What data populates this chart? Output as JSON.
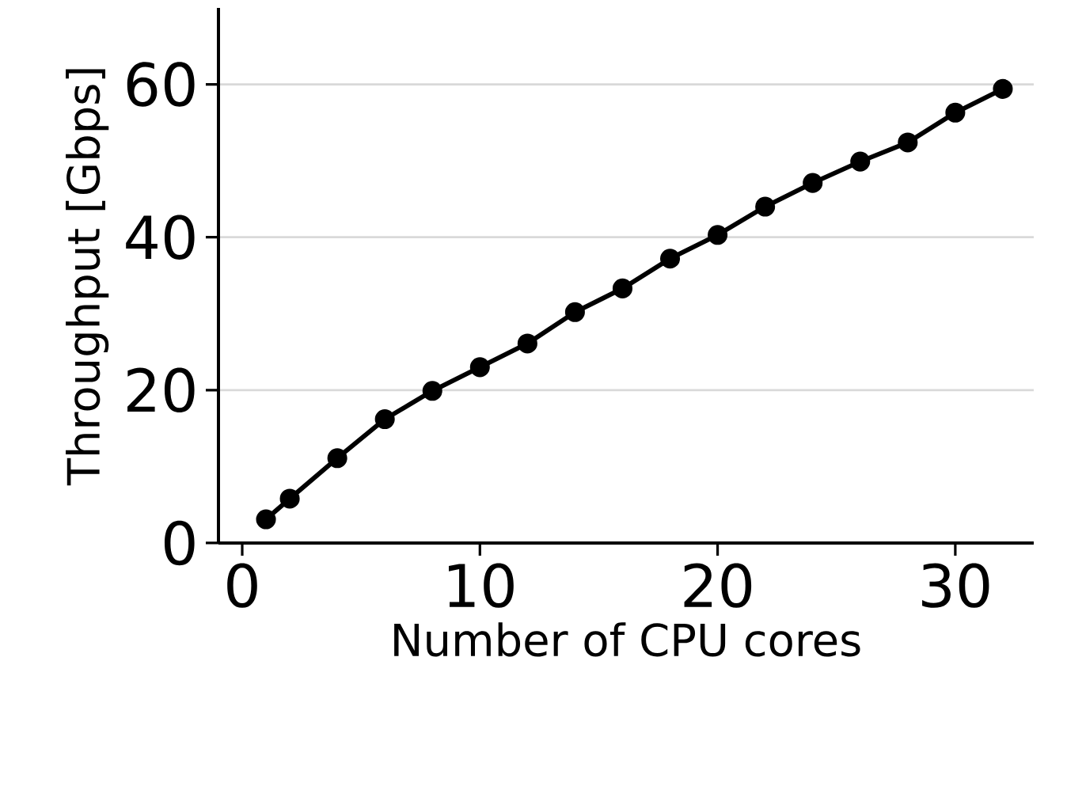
{
  "chart_data": {
    "type": "line",
    "xlabel": "Number of CPU cores",
    "ylabel": "Throughput [Gbps]",
    "x": [
      1,
      2,
      4,
      6,
      8,
      10,
      12,
      14,
      16,
      18,
      20,
      22,
      24,
      26,
      28,
      30,
      32
    ],
    "values": [
      3.1,
      5.8,
      11.1,
      16.2,
      19.9,
      23.0,
      26.1,
      30.2,
      33.3,
      37.2,
      40.3,
      44.0,
      47.1,
      49.9,
      52.4,
      56.3,
      59.4
    ],
    "color": "#000000",
    "marker": "circle",
    "line_style": "solid",
    "grid": "y",
    "xlim": [
      -1,
      33.3
    ],
    "ylim": [
      0,
      70
    ],
    "xticks": [
      0,
      10,
      20,
      30
    ],
    "yticks": [
      0,
      20,
      40,
      60
    ]
  }
}
